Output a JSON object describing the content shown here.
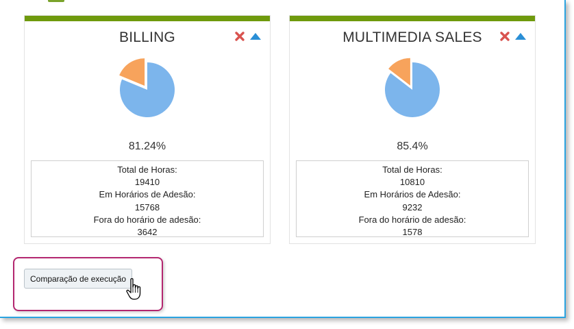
{
  "cards": [
    {
      "title": "BILLING",
      "percent_label": "81.24%",
      "pie_fraction": 0.8124,
      "stats": [
        "Total de Horas:",
        "19410",
        "Em Horários de Adesão:",
        "15768",
        "Fora do horário de adesão:",
        "3642"
      ]
    },
    {
      "title": "MULTIMEDIA SALES",
      "percent_label": "85.4%",
      "pie_fraction": 0.854,
      "stats": [
        "Total de Horas:",
        "10810",
        "Em Horários de Adesão:",
        "9232",
        "Fora do horário de adesão:",
        "1578"
      ]
    }
  ],
  "compare_button_label": "Comparação de execução",
  "icons": {
    "close": "close-icon",
    "collapse": "chevron-up-icon",
    "cursor": "hand-pointer-icon"
  },
  "colors": {
    "card_bar": "#6f9a0d",
    "pie_main": "#7cb5ec",
    "pie_slice": "#f7a35c",
    "close": "#d9534f",
    "collapse": "#2a8fd6",
    "highlight": "#b3266f"
  }
}
